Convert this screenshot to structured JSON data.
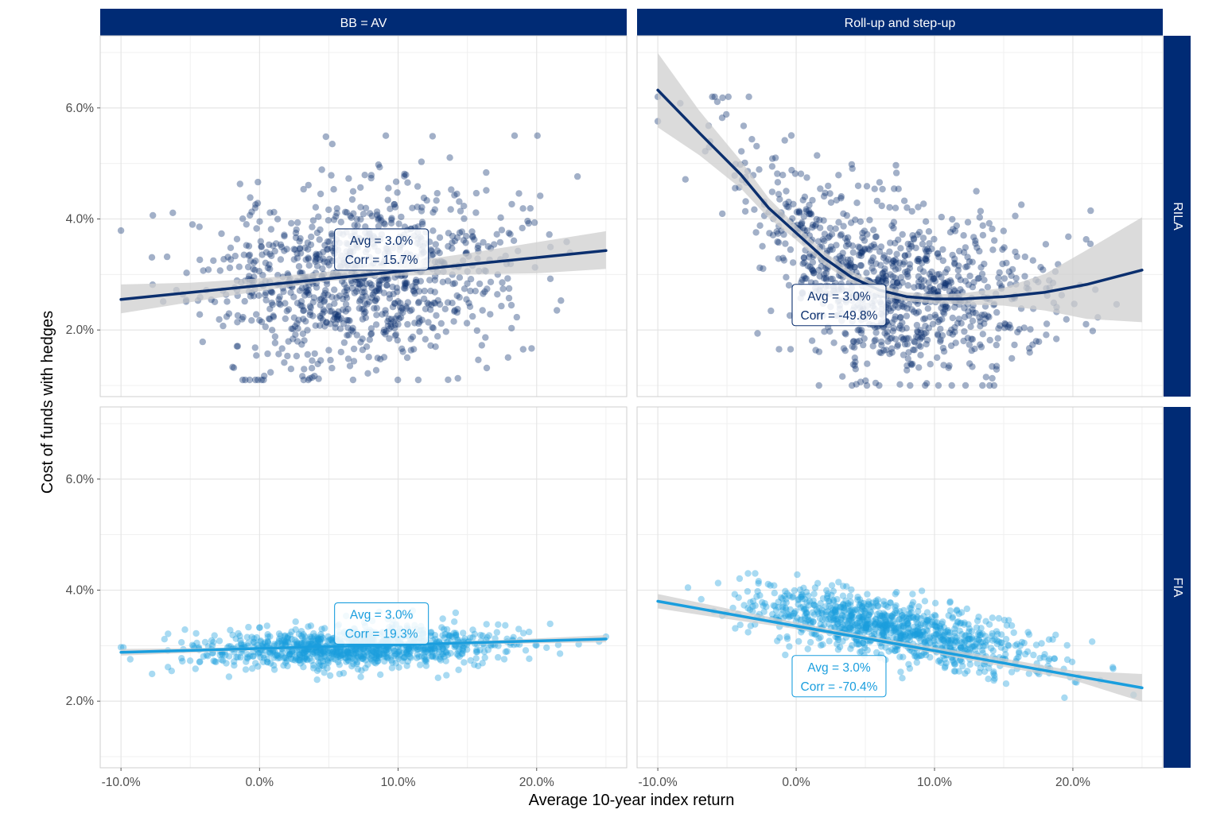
{
  "chart_data": {
    "type": "scatter",
    "xlabel": "Average 10-year index return",
    "ylabel": "Cost of funds with hedges",
    "xlim": [
      -11.5,
      26.5
    ],
    "ylim": [
      0.8,
      7.3
    ],
    "x_ticks": [
      -10,
      0,
      10,
      20
    ],
    "x_tick_labels": [
      "-10.0%",
      "0.0%",
      "10.0%",
      "20.0%"
    ],
    "y_ticks": [
      2,
      4,
      6
    ],
    "y_tick_labels": [
      "2.0%",
      "4.0%",
      "6.0%"
    ],
    "column_labels": [
      "BB = AV",
      "Roll-up and step-up"
    ],
    "row_labels": [
      "RILA",
      "FIA"
    ],
    "colors": {
      "strip": "#002b75",
      "rila": "#0b2f6e",
      "fia": "#1a9ede",
      "band": "#cfcfcf",
      "grid": "#e3e3e3"
    },
    "panels": [
      {
        "row": "RILA",
        "column": "BB = AV",
        "series_color": "rila",
        "annotation": {
          "avg_label": "Avg = 3.0%",
          "corr_label": "Corr = 15.7%",
          "at": [
            8.8,
            3.45
          ]
        },
        "points": {
          "n": 1000,
          "seed": 11,
          "x_mean": 7,
          "x_sd": 5.5,
          "x_min": -10,
          "x_max": 25,
          "y_base": 3.0,
          "y_slope": 0.021,
          "y_sd": 0.8,
          "y_min": 1.1,
          "y_max": 5.5
        },
        "fit": {
          "x": [
            -10,
            25
          ],
          "y": [
            2.55,
            3.43
          ]
        },
        "band": {
          "x": [
            -10,
            -5,
            0,
            5,
            10,
            15,
            20,
            25
          ],
          "lower": [
            2.3,
            2.5,
            2.7,
            2.88,
            2.98,
            3.0,
            3.02,
            3.1
          ],
          "upper": [
            2.82,
            2.85,
            2.93,
            3.05,
            3.2,
            3.38,
            3.58,
            3.78
          ]
        }
      },
      {
        "row": "RILA",
        "column": "Roll-up and step-up",
        "series_color": "rila",
        "annotation": {
          "avg_label": "Avg = 3.0%",
          "corr_label": "Corr = -49.8%",
          "at": [
            3.1,
            2.45
          ]
        },
        "points": {
          "n": 1000,
          "seed": 29,
          "x_mean": 7,
          "x_sd": 5.5,
          "x_min": -10,
          "x_max": 25,
          "y_curve": "loess",
          "y_sd": 0.75,
          "y_min": 1.0,
          "y_max": 6.2
        },
        "fit": {
          "x": [
            -10,
            -7,
            -4,
            -2,
            0,
            2,
            4,
            6,
            8,
            10,
            12,
            15,
            18,
            21,
            25
          ],
          "y": [
            6.32,
            5.55,
            4.8,
            4.2,
            3.75,
            3.3,
            2.95,
            2.72,
            2.6,
            2.56,
            2.56,
            2.6,
            2.68,
            2.82,
            3.08
          ]
        },
        "band": {
          "x": [
            -10,
            -7,
            -4,
            -2,
            0,
            2,
            4,
            6,
            8,
            10,
            12,
            15,
            18,
            21,
            25
          ],
          "lower": [
            5.65,
            5.15,
            4.55,
            4.02,
            3.62,
            3.18,
            2.85,
            2.63,
            2.52,
            2.48,
            2.46,
            2.44,
            2.35,
            2.2,
            2.14
          ],
          "upper": [
            6.99,
            5.95,
            5.05,
            4.38,
            3.88,
            3.42,
            3.05,
            2.81,
            2.68,
            2.64,
            2.66,
            2.76,
            3.01,
            3.44,
            4.03
          ]
        }
      },
      {
        "row": "FIA",
        "column": "BB = AV",
        "series_color": "fia",
        "annotation": {
          "avg_label": "Avg = 3.0%",
          "corr_label": "Corr = 19.3%",
          "at": [
            8.8,
            3.4
          ]
        },
        "points": {
          "n": 1000,
          "seed": 47,
          "x_mean": 7,
          "x_sd": 5.5,
          "x_min": -10,
          "x_max": 25,
          "y_base": 2.97,
          "y_slope": 0.0075,
          "y_sd": 0.19,
          "y_min": 2.35,
          "y_max": 3.65
        },
        "fit": {
          "x": [
            -10,
            25
          ],
          "y": [
            2.88,
            3.12
          ]
        },
        "band": {
          "x": [
            -10,
            0,
            10,
            20,
            25
          ],
          "lower": [
            2.82,
            2.92,
            3.0,
            3.04,
            3.06
          ],
          "upper": [
            2.94,
            2.97,
            3.03,
            3.13,
            3.19
          ]
        }
      },
      {
        "row": "FIA",
        "column": "Roll-up and step-up",
        "series_color": "fia",
        "annotation": {
          "avg_label": "Avg = 3.0%",
          "corr_label": "Corr = -70.4%",
          "at": [
            3.1,
            2.45
          ]
        },
        "points": {
          "n": 1000,
          "seed": 83,
          "x_mean": 7,
          "x_sd": 5.5,
          "x_min": -10,
          "x_max": 25,
          "y_base": 3.3,
          "y_slope": -0.0445,
          "y_sd": 0.28,
          "y_min": 1.9,
          "y_max": 4.3
        },
        "fit": {
          "x": [
            -10,
            25
          ],
          "y": [
            3.8,
            2.24
          ]
        },
        "band": {
          "x": [
            -10,
            -5,
            0,
            5,
            10,
            15,
            20,
            25
          ],
          "lower": [
            3.67,
            3.48,
            3.3,
            3.1,
            2.86,
            2.62,
            2.38,
            1.99
          ],
          "upper": [
            3.93,
            3.67,
            3.42,
            3.18,
            2.97,
            2.77,
            2.55,
            2.49
          ]
        }
      }
    ]
  }
}
